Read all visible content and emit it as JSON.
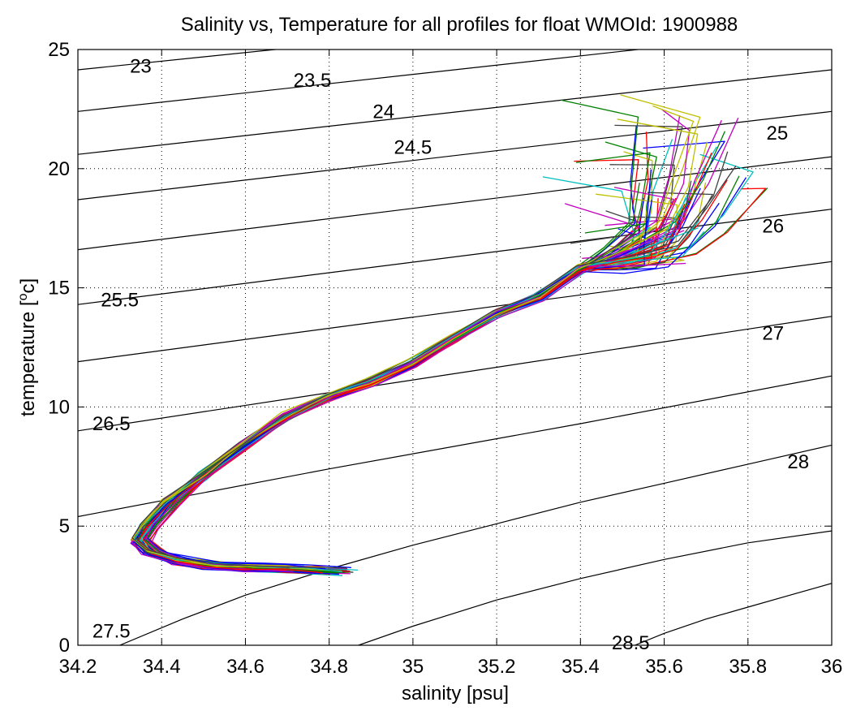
{
  "chart_data": {
    "type": "line",
    "title": "Salinity vs, Temperature for all profiles for float WMOId: 1900988",
    "xlabel": "salinity [psu]",
    "ylabel_main": "temperature [",
    "ylabel_sup": "o",
    "ylabel_tail": "c]",
    "xlim": [
      34.2,
      36
    ],
    "ylim": [
      0,
      25
    ],
    "x_ticks": [
      "34.2",
      "34.4",
      "34.6",
      "34.8",
      "35",
      "35.2",
      "35.4",
      "35.6",
      "35.8",
      "36"
    ],
    "y_ticks": [
      "0",
      "5",
      "10",
      "15",
      "20",
      "25"
    ],
    "grid": true,
    "density_contours": [
      {
        "label": "23",
        "label_at": [
          34.35,
          24.3
        ],
        "points": [
          [
            34.2,
            24.15
          ],
          [
            36.0,
            27.4
          ]
        ]
      },
      {
        "label": "23.5",
        "label_at": [
          34.76,
          23.7
        ],
        "points": [
          [
            34.2,
            22.4
          ],
          [
            36.0,
            25.9
          ]
        ]
      },
      {
        "label": "24",
        "label_at": [
          34.93,
          22.4
        ],
        "points": [
          [
            34.2,
            20.6
          ],
          [
            36.0,
            24.15
          ]
        ]
      },
      {
        "label": "24.5",
        "label_at": [
          35.0,
          20.9
        ],
        "points": [
          [
            34.2,
            18.7
          ],
          [
            36.0,
            22.4
          ]
        ]
      },
      {
        "label": "25",
        "label_at": [
          35.87,
          21.5
        ],
        "points": [
          [
            34.2,
            16.6
          ],
          [
            36.0,
            20.5
          ]
        ]
      },
      {
        "label": "25.5",
        "label_at": [
          34.3,
          14.5
        ],
        "points": [
          [
            34.2,
            14.3
          ],
          [
            36.0,
            18.3
          ]
        ]
      },
      {
        "label": "26",
        "label_at": [
          35.86,
          17.6
        ],
        "points": [
          [
            34.2,
            11.9
          ],
          [
            36.0,
            16.1
          ]
        ]
      },
      {
        "label": "26.5",
        "label_at": [
          34.28,
          9.3
        ],
        "points": [
          [
            34.2,
            9.0
          ],
          [
            36.0,
            13.8
          ]
        ]
      },
      {
        "label": "27",
        "label_at": [
          35.86,
          13.1
        ],
        "points": [
          [
            34.2,
            5.4
          ],
          [
            34.8,
            7.4
          ],
          [
            35.4,
            9.3
          ],
          [
            36.0,
            11.3
          ]
        ]
      },
      {
        "label": "27.5",
        "label_at": [
          34.28,
          0.6
        ],
        "points": [
          [
            34.3,
            0.0
          ],
          [
            34.45,
            1.1
          ],
          [
            34.6,
            2.1
          ],
          [
            34.8,
            3.2
          ],
          [
            35.0,
            4.2
          ],
          [
            35.2,
            5.1
          ],
          [
            35.4,
            6.0
          ],
          [
            35.6,
            6.8
          ],
          [
            35.8,
            7.6
          ],
          [
            36.0,
            8.4
          ]
        ]
      },
      {
        "label": "28",
        "label_at": [
          35.92,
          7.7
        ],
        "points": [
          [
            34.87,
            0.0
          ],
          [
            35.0,
            0.8
          ],
          [
            35.2,
            1.9
          ],
          [
            35.4,
            2.8
          ],
          [
            35.6,
            3.6
          ],
          [
            35.8,
            4.3
          ],
          [
            36.0,
            4.8
          ]
        ]
      },
      {
        "label": "28.5",
        "label_at": [
          35.52,
          0.1
        ],
        "points": [
          [
            35.53,
            0.0
          ],
          [
            35.6,
            0.5
          ],
          [
            35.7,
            1.1
          ],
          [
            35.8,
            1.6
          ],
          [
            35.9,
            2.1
          ],
          [
            36.0,
            2.6
          ]
        ]
      }
    ],
    "profile_colors": [
      "#0000ff",
      "#008000",
      "#ff0000",
      "#00bfbf",
      "#bf00bf",
      "#bfbf00",
      "#404040"
    ],
    "mean_profile": [
      [
        35.68,
        20.5
      ],
      [
        35.64,
        18.5
      ],
      [
        35.6,
        17.0
      ],
      [
        35.5,
        16.3
      ],
      [
        35.4,
        15.8
      ],
      [
        35.3,
        14.6
      ],
      [
        35.2,
        13.9
      ],
      [
        35.1,
        12.9
      ],
      [
        35.0,
        11.8
      ],
      [
        34.9,
        11.0
      ],
      [
        34.8,
        10.4
      ],
      [
        34.7,
        9.6
      ],
      [
        34.6,
        8.4
      ],
      [
        34.5,
        7.1
      ],
      [
        34.42,
        6.0
      ],
      [
        34.37,
        5.0
      ],
      [
        34.35,
        4.4
      ],
      [
        34.38,
        3.9
      ],
      [
        34.44,
        3.55
      ],
      [
        34.52,
        3.35
      ],
      [
        34.62,
        3.25
      ],
      [
        34.72,
        3.2
      ],
      [
        34.82,
        3.1
      ]
    ],
    "profile_count": 70
  }
}
